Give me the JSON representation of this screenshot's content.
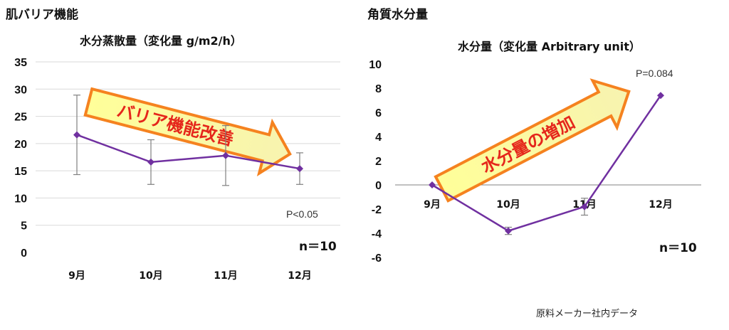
{
  "left_panel": {
    "heading": "肌バリア機能",
    "arrow_text": "バリア機能改善",
    "p_value": "P<0.05",
    "n_label": "n＝10"
  },
  "right_panel": {
    "heading": "角質水分量",
    "arrow_text": "水分量の増加",
    "p_value": "P=0.084",
    "n_label": "n＝10"
  },
  "source_note": "原料メーカー社内データ",
  "colors": {
    "line": "#7030a0",
    "arrow_fill_start": "#ffff99",
    "arrow_fill_end": "#f7f3b0",
    "arrow_border": "#f5821f",
    "arrow_text": "#e5261b",
    "grid": "#d9d9d9",
    "errorbar": "#808080"
  },
  "chart_data": [
    {
      "type": "line",
      "title": "水分蒸散量（変化量 g/m2/h）",
      "categories": [
        "9月",
        "10月",
        "11月",
        "12月"
      ],
      "series": [
        {
          "values": [
            21.6,
            16.6,
            17.8,
            15.4
          ],
          "error": [
            7.3,
            4.1,
            5.5,
            2.9
          ]
        }
      ],
      "ylim": [
        0,
        35
      ],
      "yticks": [
        0,
        5,
        10,
        15,
        20,
        25,
        30,
        35
      ],
      "grid": true,
      "marker": "diamond"
    },
    {
      "type": "line",
      "title": "水分量（変化量 Arbitrary unit）",
      "categories": [
        "9月",
        "10月",
        "11月",
        "12月"
      ],
      "series": [
        {
          "values": [
            0,
            -3.8,
            -1.8,
            7.4
          ],
          "error": [
            0,
            0.3,
            0.7,
            0
          ]
        }
      ],
      "ylim": [
        -6,
        10
      ],
      "yticks": [
        -6,
        -4,
        -2,
        0,
        2,
        4,
        6,
        8,
        10
      ],
      "grid": false,
      "marker": "diamond"
    }
  ]
}
